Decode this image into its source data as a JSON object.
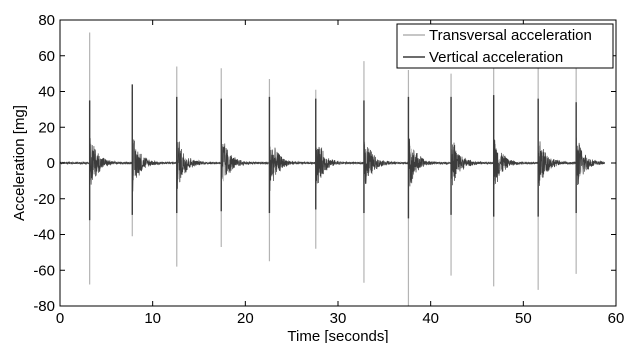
{
  "chart_data": {
    "type": "line",
    "xlabel": "Time [seconds]",
    "ylabel": "Acceleration [mg]",
    "xlim": [
      0,
      60
    ],
    "ylim": [
      -80,
      80
    ],
    "x_ticks": [
      "0",
      "10",
      "20",
      "30",
      "40",
      "50",
      "60"
    ],
    "y_ticks": [
      "80",
      "60",
      "40",
      "20",
      "0",
      "-20",
      "-40",
      "-60",
      "-80"
    ],
    "grid": false,
    "legend_position": "top-right",
    "series": [
      {
        "name": "Transversal acceleration",
        "color": "#b4b4b4",
        "event_times": [
          3.2,
          7.8,
          12.6,
          17.4,
          22.6,
          27.6,
          32.8,
          37.6,
          42.2,
          46.8,
          51.6,
          55.7
        ],
        "event_peaks_max": [
          73,
          40,
          54,
          53,
          47,
          41,
          57,
          52,
          50,
          53,
          53,
          54
        ],
        "event_peaks_min": [
          -68,
          -41,
          -58,
          -47,
          -55,
          -48,
          -67,
          -80,
          -63,
          -69,
          -71,
          -62
        ]
      },
      {
        "name": "Vertical acceleration",
        "color": "#3c3c3c",
        "event_times": [
          3.2,
          7.8,
          12.6,
          17.4,
          22.6,
          27.6,
          32.8,
          37.6,
          42.2,
          46.8,
          51.6,
          55.7
        ],
        "event_peaks_max": [
          35,
          44,
          37,
          36,
          37,
          36,
          35,
          37,
          37,
          38,
          36,
          34
        ],
        "event_peaks_min": [
          -32,
          -29,
          -28,
          -27,
          -28,
          -26,
          -28,
          -31,
          -29,
          -30,
          -30,
          -28
        ]
      }
    ]
  }
}
